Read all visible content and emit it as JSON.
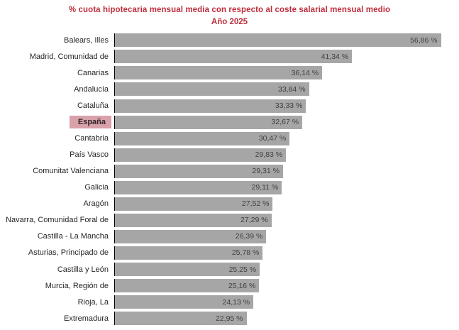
{
  "chart_data": {
    "type": "bar",
    "orientation": "horizontal",
    "title": "% cuota hipotecaria mensual media con respecto al coste salarial mensual medio",
    "subtitle": "Año 2025",
    "xlim": [
      0,
      60
    ],
    "grid": false,
    "legend": false,
    "bar_color": "#a6a6a6",
    "title_color": "#be2d3c",
    "highlight_label_bg": "#d9a1aa",
    "highlight_category": "España",
    "categories": [
      "Balears, Illes",
      "Madrid, Comunidad de",
      "Canarias",
      "Andalucía",
      "Cataluña",
      "España",
      "Cantabria",
      "País Vasco",
      "Comunitat Valenciana",
      "Galicia",
      "Aragón",
      "Navarra, Comunidad Foral de",
      "Castilla - La Mancha",
      "Asturias, Principado de",
      "Castilla y León",
      "Murcia, Región de",
      "Rioja, La",
      "Extremadura"
    ],
    "values": [
      56.86,
      41.34,
      36.14,
      33.84,
      33.33,
      32.67,
      30.47,
      29.83,
      29.31,
      29.11,
      27.52,
      27.29,
      26.39,
      25.78,
      25.25,
      25.16,
      24.13,
      22.95
    ],
    "value_labels": [
      "56,86 %",
      "41,34 %",
      "36,14 %",
      "33,84 %",
      "33,33 %",
      "32,67 %",
      "30,47 %",
      "29,83 %",
      "29,31 %",
      "29,11 %",
      "27,52 %",
      "27,29 %",
      "26,39 %",
      "25,78 %",
      "25,25 %",
      "25,16 %",
      "24,13 %",
      "22,95 %"
    ]
  }
}
